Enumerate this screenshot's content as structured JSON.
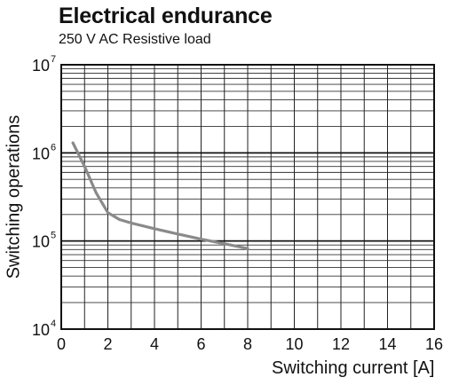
{
  "chart_data": {
    "type": "line",
    "title": "Electrical endurance",
    "subtitle": "250 V AC Resistive load",
    "xlabel": "Switching current [A]",
    "ylabel": "Switching operations",
    "xlim": [
      0,
      16
    ],
    "x_ticks": [
      0,
      2,
      4,
      6,
      8,
      10,
      12,
      14,
      16
    ],
    "ylim": [
      10000,
      10000000
    ],
    "y_scale": "log",
    "y_ticks": [
      {
        "base": "10",
        "exp": "4",
        "value": 10000
      },
      {
        "base": "10",
        "exp": "5",
        "value": 100000
      },
      {
        "base": "10",
        "exp": "6",
        "value": 1000000
      },
      {
        "base": "10",
        "exp": "7",
        "value": 10000000
      }
    ],
    "grid": true,
    "series": [
      {
        "color": "#8a8a8a",
        "x": [
          0.5,
          1.0,
          1.5,
          2.0,
          2.5,
          3.0,
          4.0,
          5.0,
          6.0,
          7.0,
          8.0
        ],
        "y": [
          1300000,
          700000,
          350000,
          210000,
          175000,
          160000,
          138000,
          120000,
          105000,
          93000,
          82000
        ]
      }
    ]
  }
}
